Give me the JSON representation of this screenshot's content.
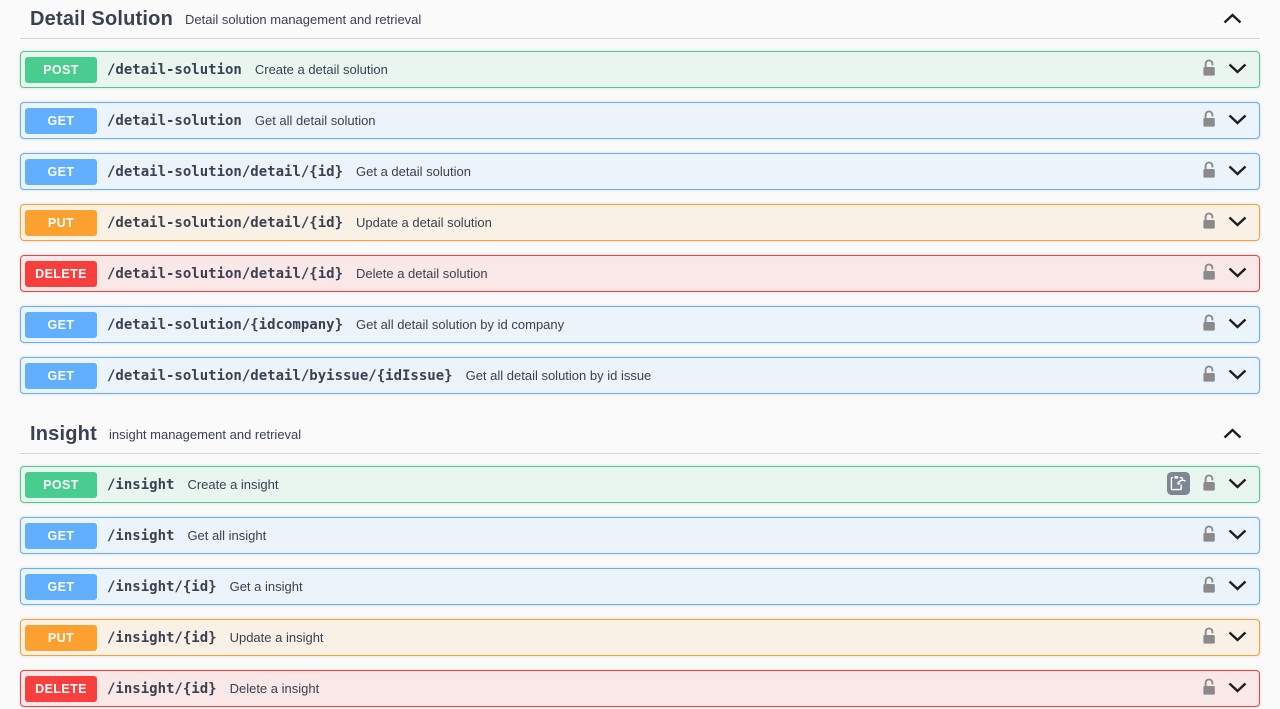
{
  "colors": {
    "post": "#49cc90",
    "get": "#61affe",
    "put": "#fca130",
    "delete": "#f93e3e",
    "post_bg": "#e8f6ef",
    "get_bg": "#ebf3fb",
    "put_bg": "#faf1e6",
    "delete_bg": "#fae7e7",
    "text": "#3b4151"
  },
  "sections": [
    {
      "title": "Detail Solution",
      "subtitle": "Detail solution management and retrieval",
      "operations": [
        {
          "method": "POST",
          "path": "/detail-solution",
          "description": "Create a detail solution",
          "has_clipboard": false
        },
        {
          "method": "GET",
          "path": "/detail-solution",
          "description": "Get all detail solution",
          "has_clipboard": false
        },
        {
          "method": "GET",
          "path": "/detail-solution/detail/{id}",
          "description": "Get a detail solution",
          "has_clipboard": false
        },
        {
          "method": "PUT",
          "path": "/detail-solution/detail/{id}",
          "description": "Update a detail solution",
          "has_clipboard": false
        },
        {
          "method": "DELETE",
          "path": "/detail-solution/detail/{id}",
          "description": "Delete a detail solution",
          "has_clipboard": false
        },
        {
          "method": "GET",
          "path": "/detail-solution/{idcompany}",
          "description": "Get all detail solution by id company",
          "has_clipboard": false
        },
        {
          "method": "GET",
          "path": "/detail-solution/detail/byissue/{idIssue}",
          "description": "Get all detail solution by id issue",
          "has_clipboard": false
        }
      ]
    },
    {
      "title": "Insight",
      "subtitle": "insight management and retrieval",
      "operations": [
        {
          "method": "POST",
          "path": "/insight",
          "description": "Create a insight",
          "has_clipboard": true
        },
        {
          "method": "GET",
          "path": "/insight",
          "description": "Get all insight",
          "has_clipboard": false
        },
        {
          "method": "GET",
          "path": "/insight/{id}",
          "description": "Get a insight",
          "has_clipboard": false
        },
        {
          "method": "PUT",
          "path": "/insight/{id}",
          "description": "Update a insight",
          "has_clipboard": false
        },
        {
          "method": "DELETE",
          "path": "/insight/{id}",
          "description": "Delete a insight",
          "has_clipboard": false
        }
      ]
    }
  ]
}
